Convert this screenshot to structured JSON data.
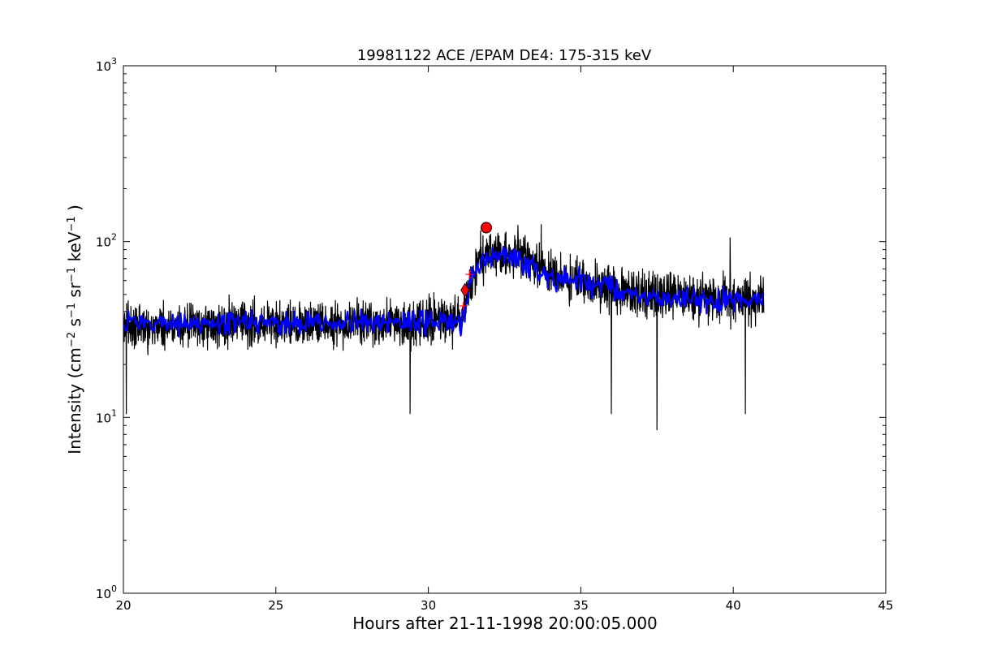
{
  "chart_data": {
    "type": "line",
    "title": "19981122 ACE /EPAM DE4: 175-315 keV",
    "xlabel": "Hours after 21-11-1998 20:00:05.000",
    "ylabel_parts": {
      "prefix": "Intensity (cm",
      "sup1": "−2",
      "mid1": " s",
      "sup2": "−1",
      "mid2": " sr",
      "sup3": "−1",
      "mid3": " keV",
      "sup4": "−1",
      "suffix": " )"
    },
    "xscale": "linear",
    "yscale": "log",
    "xlim": [
      20,
      45
    ],
    "ylim": [
      1,
      1000
    ],
    "x_ticks": [
      20,
      25,
      30,
      35,
      40,
      45
    ],
    "y_ticks": [
      {
        "value": 1,
        "base": "10",
        "exp": "0"
      },
      {
        "value": 10,
        "base": "10",
        "exp": "1"
      },
      {
        "value": 100,
        "base": "10",
        "exp": "2"
      },
      {
        "value": 1000,
        "base": "10",
        "exp": "3"
      }
    ],
    "grid": false,
    "series": [
      {
        "role": "raw intensity (black)",
        "color": "#000000",
        "x_range": [
          20.0,
          41.0
        ],
        "profile": [
          {
            "x": 20.0,
            "y": 33
          },
          {
            "x": 25.0,
            "y": 34
          },
          {
            "x": 30.0,
            "y": 35
          },
          {
            "x": 31.1,
            "y": 36
          },
          {
            "x": 31.3,
            "y": 52
          },
          {
            "x": 31.6,
            "y": 75
          },
          {
            "x": 32.0,
            "y": 88
          },
          {
            "x": 33.0,
            "y": 82
          },
          {
            "x": 34.0,
            "y": 65
          },
          {
            "x": 35.0,
            "y": 58
          },
          {
            "x": 37.0,
            "y": 50
          },
          {
            "x": 41.0,
            "y": 46
          }
        ],
        "notable_dips": [
          {
            "x": 20.1,
            "y": 10.5
          },
          {
            "x": 29.4,
            "y": 10.5
          },
          {
            "x": 36.0,
            "y": 10.5
          },
          {
            "x": 37.5,
            "y": 8.5
          },
          {
            "x": 40.4,
            "y": 10.5
          }
        ],
        "notable_peaks": [
          {
            "x": 33.7,
            "y": 125
          },
          {
            "x": 39.9,
            "y": 105
          }
        ]
      },
      {
        "role": "smoothed intensity (blue)",
        "color": "#0000ff",
        "x_range": [
          20.0,
          41.0
        ],
        "profile": [
          {
            "x": 20.0,
            "y": 34
          },
          {
            "x": 31.1,
            "y": 35
          },
          {
            "x": 31.4,
            "y": 58
          },
          {
            "x": 31.8,
            "y": 82
          },
          {
            "x": 32.5,
            "y": 85
          },
          {
            "x": 33.5,
            "y": 70
          },
          {
            "x": 34.0,
            "y": 60
          },
          {
            "x": 35.0,
            "y": 60
          },
          {
            "x": 37.0,
            "y": 48
          },
          {
            "x": 41.0,
            "y": 46
          }
        ]
      }
    ],
    "markers": [
      {
        "kind": "circle",
        "color": "#ff0000",
        "x": 31.9,
        "y": 120
      },
      {
        "kind": "diamond",
        "color": "#ff0000",
        "x": 31.2,
        "y": 53
      },
      {
        "kind": "plus",
        "color": "#ff0000",
        "x": 31.15,
        "y": 43
      },
      {
        "kind": "plus",
        "color": "#ff0000",
        "x": 31.35,
        "y": 65
      }
    ]
  }
}
